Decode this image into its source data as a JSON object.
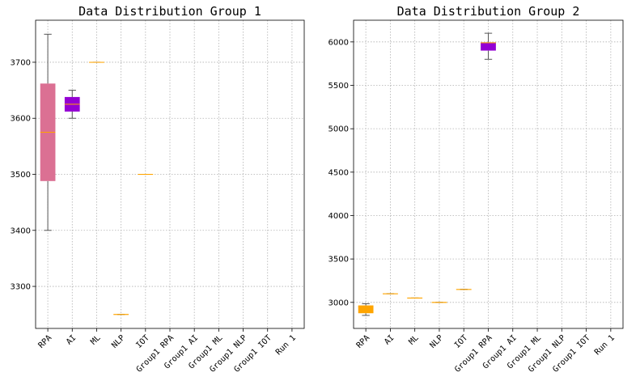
{
  "chart_data": [
    {
      "type": "box",
      "title": "Data Distribution Group 1",
      "categories": [
        "RPA",
        "AI",
        "ML",
        "NLP",
        "IOT",
        "Group1 RPA",
        "Group1 AI",
        "Group1 ML",
        "Group1 NLP",
        "Group1 IOT",
        "Run 1"
      ],
      "ylim": [
        3225,
        3775
      ],
      "yticks": [
        3300,
        3400,
        3500,
        3600,
        3700
      ],
      "grid": true,
      "boxes": [
        {
          "category": "RPA",
          "min": 3400,
          "q1": 3488,
          "median": 3575,
          "q3": 3662,
          "max": 3750,
          "color": "#db7093"
        },
        {
          "category": "AI",
          "min": 3600,
          "q1": 3612,
          "median": 3625,
          "q3": 3638,
          "max": 3650,
          "color": "#9400d3"
        },
        {
          "category": "ML",
          "min": 3700,
          "q1": 3700,
          "median": 3700,
          "q3": 3700,
          "max": 3700,
          "color": "#ffa500"
        },
        {
          "category": "NLP",
          "min": 3250,
          "q1": 3250,
          "median": 3250,
          "q3": 3250,
          "max": 3250,
          "color": "#ffa500"
        },
        {
          "category": "IOT",
          "min": 3500,
          "q1": 3500,
          "median": 3500,
          "q3": 3500,
          "max": 3500,
          "color": "#ffa500"
        }
      ]
    },
    {
      "type": "box",
      "title": "Data Distribution Group 2",
      "categories": [
        "RPA",
        "AI",
        "ML",
        "NLP",
        "IOT",
        "Group1 RPA",
        "Group1 AI",
        "Group1 ML",
        "Group1 NLP",
        "Group1 IOT",
        "Run 1"
      ],
      "ylim": [
        2700,
        6250
      ],
      "yticks": [
        3000,
        3500,
        4000,
        4500,
        5000,
        5500,
        6000
      ],
      "grid": true,
      "boxes": [
        {
          "category": "RPA",
          "min": 2850,
          "q1": 2875,
          "median": 2950,
          "q3": 2965,
          "max": 2985,
          "color": "#ffa500"
        },
        {
          "category": "AI",
          "min": 3100,
          "q1": 3100,
          "median": 3100,
          "q3": 3100,
          "max": 3100,
          "color": "#ffa500"
        },
        {
          "category": "ML",
          "min": 3050,
          "q1": 3050,
          "median": 3050,
          "q3": 3050,
          "max": 3050,
          "color": "#ffa500"
        },
        {
          "category": "NLP",
          "min": 3000,
          "q1": 3000,
          "median": 3000,
          "q3": 3000,
          "max": 3000,
          "color": "#ffa500"
        },
        {
          "category": "IOT",
          "min": 3150,
          "q1": 3150,
          "median": 3150,
          "q3": 3150,
          "max": 3150,
          "color": "#ffa500"
        },
        {
          "category": "Group1 RPA",
          "min": 5800,
          "q1": 5900,
          "median": 5990,
          "q3": 5995,
          "max": 6100,
          "color": "#9400d3"
        }
      ]
    }
  ]
}
